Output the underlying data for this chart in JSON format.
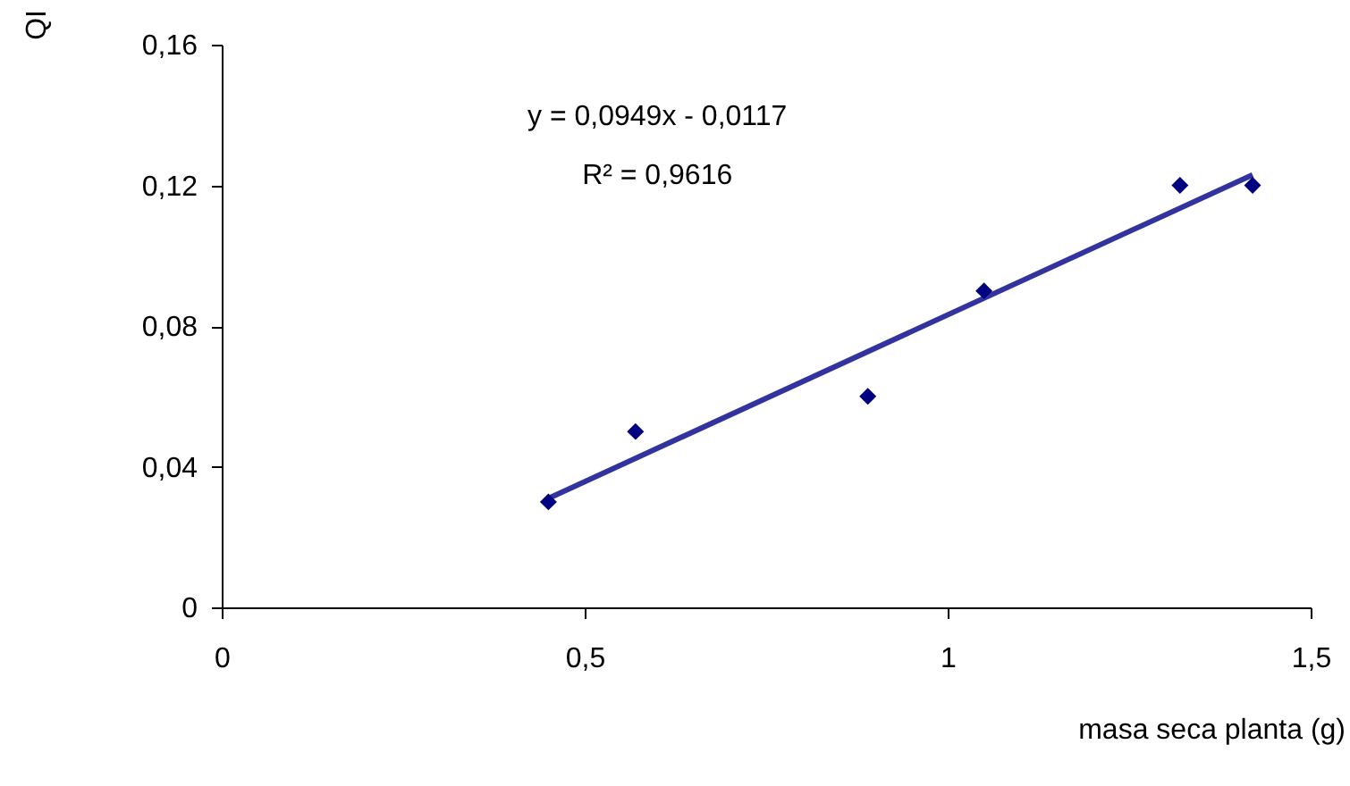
{
  "chart_data": {
    "type": "scatter",
    "xlabel": "masa seca planta (g)",
    "ylabel": "QI",
    "annotations": [
      "y = 0,0949x - 0,0117",
      "R² = 0,9616"
    ],
    "xlim": [
      0,
      1.5
    ],
    "xticks": [
      0,
      {
        "value": 0.5,
        "label": "0,5"
      },
      1,
      {
        "value": 1.5,
        "label": "1,5"
      }
    ],
    "ylim": [
      0,
      0.16
    ],
    "yticks": [
      0,
      {
        "value": 0.04,
        "label": "0,04"
      },
      {
        "value": 0.08,
        "label": "0,08"
      },
      {
        "value": 0.12,
        "label": "0,12"
      },
      {
        "value": 0.16,
        "label": "0,16"
      }
    ],
    "series": [
      {
        "marker": "diamond",
        "color": "#000080",
        "x": [
          0.45,
          0.57,
          0.89,
          1.05,
          1.32,
          1.42
        ],
        "values": [
          0.03,
          0.05,
          0.06,
          0.09,
          0.12,
          0.12
        ]
      },
      {
        "type": "line",
        "marker": "none",
        "color": "#3333a0",
        "x": [
          0.45,
          1.42
        ],
        "values": [
          0.031,
          0.123
        ]
      }
    ]
  }
}
